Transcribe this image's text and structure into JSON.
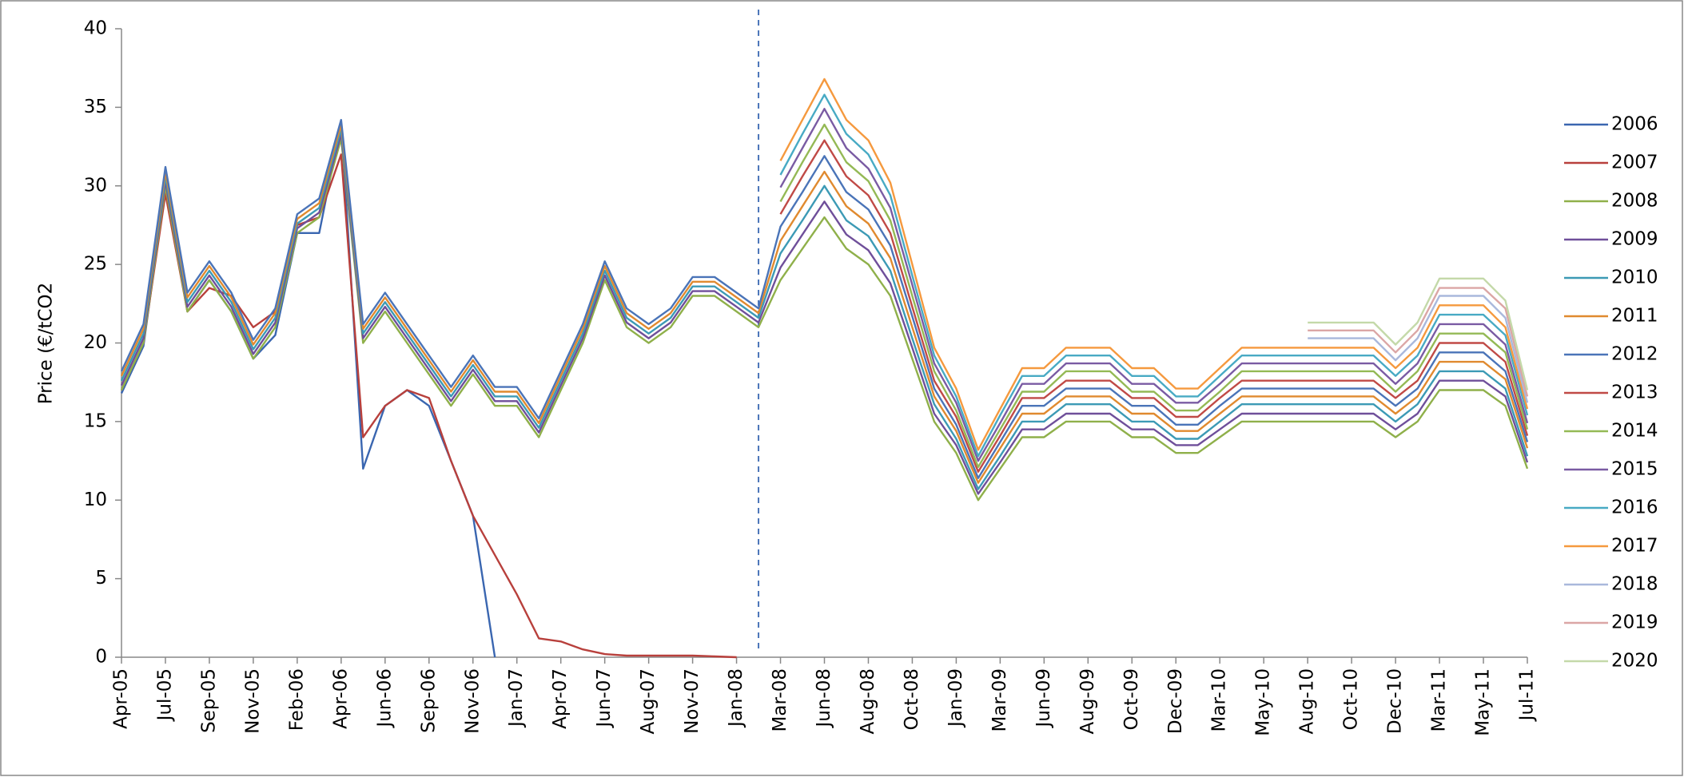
{
  "chart_data": {
    "type": "line",
    "y_label": "Price (€/tCO2",
    "legend": "right",
    "grid": false,
    "ylim": [
      0,
      40
    ],
    "yticks": [
      0,
      5,
      10,
      15,
      20,
      25,
      30,
      35,
      40
    ],
    "categories": [
      "Apr-05",
      null,
      "Jul-05",
      null,
      "Sep-05",
      null,
      "Nov-05",
      null,
      "Feb-06",
      null,
      "Apr-06",
      null,
      "Jun-06",
      null,
      "Sep-06",
      null,
      "Nov-06",
      null,
      "Jan-07",
      null,
      "Apr-07",
      null,
      "Jun-07",
      null,
      "Aug-07",
      null,
      "Nov-07",
      null,
      "Jan-08",
      null,
      "Mar-08",
      null,
      "Jun-08",
      null,
      "Aug-08",
      null,
      "Oct-08",
      null,
      "Jan-09",
      null,
      "Mar-09",
      null,
      "Jun-09",
      null,
      "Aug-09",
      null,
      "Oct-09",
      null,
      "Dec-09",
      null,
      "Mar-10",
      null,
      "May-10",
      null,
      "Aug-10",
      null,
      "Oct-10",
      null,
      "Dec-10",
      null,
      "Mar-11",
      null,
      "May-11",
      null,
      "Jul-11"
    ],
    "series": [
      {
        "name": "2006",
        "color": "#3a66b0",
        "values": [
          16.8,
          19.8,
          30,
          22,
          24,
          22,
          19,
          20.5,
          27,
          27,
          34,
          12,
          16,
          17,
          16,
          12.5,
          9,
          0,
          null,
          null,
          null,
          null,
          null,
          null,
          null,
          null,
          null,
          null,
          null,
          null,
          null,
          null,
          null,
          null,
          null,
          null,
          null,
          null,
          null,
          null,
          null,
          null,
          null,
          null,
          null,
          null,
          null,
          null,
          null,
          null,
          null,
          null,
          null,
          null,
          null,
          null,
          null,
          null,
          null,
          null,
          null,
          null,
          null,
          null,
          null
        ]
      },
      {
        "name": "2007",
        "color": "#b8403c",
        "values": [
          17,
          20,
          29.5,
          22,
          23.5,
          23,
          21,
          22,
          27.5,
          28,
          32,
          14,
          16,
          17,
          16.5,
          12.5,
          9,
          6.5,
          4,
          1.2,
          1,
          0.5,
          0.2,
          0.1,
          0.1,
          0.1,
          0.1,
          0.05,
          0,
          null,
          null,
          null,
          null,
          null,
          null,
          null,
          null,
          null,
          null,
          null,
          null,
          null,
          null,
          null,
          null,
          null,
          null,
          null,
          null,
          null,
          null,
          null,
          null,
          null,
          null,
          null,
          null,
          null,
          null,
          null,
          null,
          null,
          null,
          null,
          null
        ]
      },
      {
        "name": "2008",
        "color": "#8fb04a",
        "values": [
          17,
          20,
          30,
          22,
          24,
          22,
          19,
          21,
          27,
          28,
          33,
          20,
          22,
          20,
          18,
          16,
          18,
          16,
          16,
          14,
          17,
          20,
          24,
          21,
          20,
          21,
          23,
          23,
          22,
          21,
          24,
          26,
          28,
          26,
          25,
          23,
          19,
          15,
          13,
          10,
          12,
          14,
          14,
          15,
          15,
          15,
          14,
          14,
          13,
          13,
          14,
          15,
          15,
          15,
          15,
          15,
          15,
          15,
          14,
          15,
          17,
          17,
          17,
          16,
          12
        ]
      },
      {
        "name": "2009",
        "color": "#6f4f9a",
        "values": [
          17.3,
          20.3,
          30.3,
          22.3,
          24.3,
          22.3,
          19.3,
          21.3,
          27.3,
          28.3,
          33.3,
          20.3,
          22.3,
          20.3,
          18.3,
          16.3,
          18.3,
          16.3,
          16.3,
          14.3,
          17.3,
          20.3,
          24.3,
          21.3,
          20.3,
          21.3,
          23.3,
          23.3,
          22.3,
          21.3,
          24.8,
          26.9,
          29.0,
          26.9,
          25.9,
          23.8,
          19.7,
          15.5,
          13.5,
          10.4,
          12.4,
          14.5,
          14.5,
          15.5,
          15.5,
          15.5,
          14.5,
          14.5,
          13.5,
          13.5,
          14.5,
          15.5,
          15.5,
          15.5,
          15.5,
          15.5,
          15.5,
          15.5,
          14.5,
          15.5,
          17.6,
          17.6,
          17.6,
          16.6,
          12.4
        ]
      },
      {
        "name": "2010",
        "color": "#3c9ab5",
        "values": [
          17.6,
          20.6,
          30.6,
          22.6,
          24.6,
          22.6,
          19.6,
          21.6,
          27.6,
          28.6,
          33.6,
          20.6,
          22.6,
          20.6,
          18.6,
          16.6,
          18.6,
          16.6,
          16.6,
          14.6,
          17.6,
          20.6,
          24.6,
          21.6,
          20.6,
          21.6,
          23.6,
          23.6,
          22.6,
          21.6,
          25.7,
          27.8,
          30.0,
          27.8,
          26.8,
          24.6,
          20.3,
          16.1,
          13.9,
          10.7,
          12.8,
          15.0,
          15.0,
          16.1,
          16.1,
          16.1,
          15.0,
          15.0,
          13.9,
          13.9,
          15.0,
          16.1,
          16.1,
          16.1,
          16.1,
          16.1,
          16.1,
          16.1,
          15.0,
          16.1,
          18.2,
          18.2,
          18.2,
          17.1,
          12.8
        ]
      },
      {
        "name": "2011",
        "color": "#e08a2f",
        "values": [
          17.9,
          20.9,
          30.9,
          22.9,
          24.9,
          22.9,
          19.9,
          21.9,
          27.9,
          28.9,
          33.9,
          20.9,
          22.9,
          20.9,
          18.9,
          16.9,
          18.9,
          16.9,
          16.9,
          14.9,
          17.9,
          20.9,
          24.9,
          21.9,
          20.9,
          21.9,
          23.9,
          23.9,
          22.9,
          21.9,
          26.5,
          28.7,
          30.9,
          28.7,
          27.6,
          25.4,
          21.0,
          16.6,
          14.4,
          11.1,
          13.3,
          15.5,
          15.5,
          16.6,
          16.6,
          16.6,
          15.5,
          15.5,
          14.4,
          14.4,
          15.5,
          16.6,
          16.6,
          16.6,
          16.6,
          16.6,
          16.6,
          16.6,
          15.5,
          16.6,
          18.8,
          18.8,
          18.8,
          17.7,
          13.3
        ]
      },
      {
        "name": "2012",
        "color": "#4a74b8",
        "values": [
          18.2,
          21.2,
          31.2,
          23.2,
          25.2,
          23.2,
          20.2,
          22.2,
          28.2,
          29.2,
          34.2,
          21.2,
          23.2,
          21.2,
          19.2,
          17.2,
          19.2,
          17.2,
          17.2,
          15.2,
          18.2,
          21.2,
          25.2,
          22.2,
          21.2,
          22.2,
          24.2,
          24.2,
          23.2,
          22.2,
          27.4,
          29.6,
          31.9,
          29.6,
          28.5,
          26.2,
          21.7,
          17.1,
          14.8,
          11.4,
          13.7,
          16.0,
          16.0,
          17.1,
          17.1,
          17.1,
          16.0,
          16.0,
          14.8,
          14.8,
          16.0,
          17.1,
          17.1,
          17.1,
          17.1,
          17.1,
          17.1,
          17.1,
          16.0,
          17.1,
          19.4,
          19.4,
          19.4,
          18.2,
          13.7
        ]
      },
      {
        "name": "2013",
        "color": "#c04a46",
        "values": [
          null,
          null,
          null,
          null,
          null,
          null,
          null,
          null,
          null,
          null,
          null,
          null,
          null,
          null,
          null,
          null,
          null,
          null,
          null,
          null,
          null,
          null,
          null,
          null,
          null,
          null,
          null,
          null,
          null,
          null,
          28.2,
          30.6,
          32.9,
          30.6,
          29.4,
          27.0,
          22.3,
          17.6,
          15.3,
          11.8,
          14.1,
          16.5,
          16.5,
          17.6,
          17.6,
          17.6,
          16.5,
          16.5,
          15.3,
          15.3,
          16.5,
          17.6,
          17.6,
          17.6,
          17.6,
          17.6,
          17.6,
          17.6,
          16.5,
          17.6,
          20.0,
          20.0,
          20.0,
          18.8,
          14.1
        ]
      },
      {
        "name": "2014",
        "color": "#94b955",
        "values": [
          null,
          null,
          null,
          null,
          null,
          null,
          null,
          null,
          null,
          null,
          null,
          null,
          null,
          null,
          null,
          null,
          null,
          null,
          null,
          null,
          null,
          null,
          null,
          null,
          null,
          null,
          null,
          null,
          null,
          null,
          29.0,
          31.5,
          33.9,
          31.5,
          30.3,
          27.8,
          23.0,
          18.2,
          15.7,
          12.1,
          14.5,
          16.9,
          16.9,
          18.2,
          18.2,
          18.2,
          16.9,
          16.9,
          15.7,
          15.7,
          16.9,
          18.2,
          18.2,
          18.2,
          18.2,
          18.2,
          18.2,
          18.2,
          16.9,
          18.2,
          20.6,
          20.6,
          20.6,
          19.4,
          14.5
        ]
      },
      {
        "name": "2015",
        "color": "#7a5ba3",
        "values": [
          null,
          null,
          null,
          null,
          null,
          null,
          null,
          null,
          null,
          null,
          null,
          null,
          null,
          null,
          null,
          null,
          null,
          null,
          null,
          null,
          null,
          null,
          null,
          null,
          null,
          null,
          null,
          null,
          null,
          null,
          29.9,
          32.4,
          34.9,
          32.4,
          31.1,
          28.6,
          23.7,
          18.7,
          16.2,
          12.5,
          14.9,
          17.4,
          17.4,
          18.7,
          18.7,
          18.7,
          17.4,
          17.4,
          16.2,
          16.2,
          17.4,
          18.7,
          18.7,
          18.7,
          18.7,
          18.7,
          18.7,
          18.7,
          17.4,
          18.7,
          21.2,
          21.2,
          21.2,
          19.9,
          14.9
        ]
      },
      {
        "name": "2016",
        "color": "#48aac4",
        "values": [
          null,
          null,
          null,
          null,
          null,
          null,
          null,
          null,
          null,
          null,
          null,
          null,
          null,
          null,
          null,
          null,
          null,
          null,
          null,
          null,
          null,
          null,
          null,
          null,
          null,
          null,
          null,
          null,
          null,
          null,
          30.7,
          33.3,
          35.8,
          33.3,
          32.0,
          29.4,
          24.3,
          19.2,
          16.6,
          12.8,
          15.4,
          17.9,
          17.9,
          19.2,
          19.2,
          19.2,
          17.9,
          17.9,
          16.6,
          16.6,
          17.9,
          19.2,
          19.2,
          19.2,
          19.2,
          19.2,
          19.2,
          19.2,
          17.9,
          19.2,
          21.8,
          21.8,
          21.8,
          20.5,
          15.4
        ]
      },
      {
        "name": "2017",
        "color": "#f5993e",
        "values": [
          null,
          null,
          null,
          null,
          null,
          null,
          null,
          null,
          null,
          null,
          null,
          null,
          null,
          null,
          null,
          null,
          null,
          null,
          null,
          null,
          null,
          null,
          null,
          null,
          null,
          null,
          null,
          null,
          null,
          null,
          31.6,
          34.2,
          36.8,
          34.2,
          32.9,
          30.2,
          25.0,
          19.7,
          17.1,
          13.2,
          15.8,
          18.4,
          18.4,
          19.7,
          19.7,
          19.7,
          18.4,
          18.4,
          17.1,
          17.1,
          18.4,
          19.7,
          19.7,
          19.7,
          19.7,
          19.7,
          19.7,
          19.7,
          18.4,
          19.7,
          22.4,
          22.4,
          22.4,
          21.0,
          15.8
        ]
      },
      {
        "name": "2018",
        "color": "#a9b8dc",
        "values": [
          null,
          null,
          null,
          null,
          null,
          null,
          null,
          null,
          null,
          null,
          null,
          null,
          null,
          null,
          null,
          null,
          null,
          null,
          null,
          null,
          null,
          null,
          null,
          null,
          null,
          null,
          null,
          null,
          null,
          null,
          null,
          null,
          null,
          null,
          null,
          null,
          null,
          null,
          null,
          null,
          null,
          null,
          null,
          null,
          null,
          null,
          null,
          null,
          null,
          null,
          null,
          null,
          null,
          null,
          20.3,
          20.3,
          20.3,
          20.3,
          18.9,
          20.3,
          23.0,
          23.0,
          23.0,
          21.6,
          16.2
        ]
      },
      {
        "name": "2019",
        "color": "#dba6a5",
        "values": [
          null,
          null,
          null,
          null,
          null,
          null,
          null,
          null,
          null,
          null,
          null,
          null,
          null,
          null,
          null,
          null,
          null,
          null,
          null,
          null,
          null,
          null,
          null,
          null,
          null,
          null,
          null,
          null,
          null,
          null,
          null,
          null,
          null,
          null,
          null,
          null,
          null,
          null,
          null,
          null,
          null,
          null,
          null,
          null,
          null,
          null,
          null,
          null,
          null,
          null,
          null,
          null,
          null,
          null,
          20.8,
          20.8,
          20.8,
          20.8,
          19.4,
          20.8,
          23.5,
          23.5,
          23.5,
          22.2,
          16.6
        ]
      },
      {
        "name": "2020",
        "color": "#c4d9a9",
        "values": [
          null,
          null,
          null,
          null,
          null,
          null,
          null,
          null,
          null,
          null,
          null,
          null,
          null,
          null,
          null,
          null,
          null,
          null,
          null,
          null,
          null,
          null,
          null,
          null,
          null,
          null,
          null,
          null,
          null,
          null,
          null,
          null,
          null,
          null,
          null,
          null,
          null,
          null,
          null,
          null,
          null,
          null,
          null,
          null,
          null,
          null,
          null,
          null,
          null,
          null,
          null,
          null,
          null,
          null,
          21.3,
          21.3,
          21.3,
          21.3,
          19.9,
          21.3,
          24.1,
          24.1,
          24.1,
          22.7,
          17.0
        ]
      }
    ]
  }
}
